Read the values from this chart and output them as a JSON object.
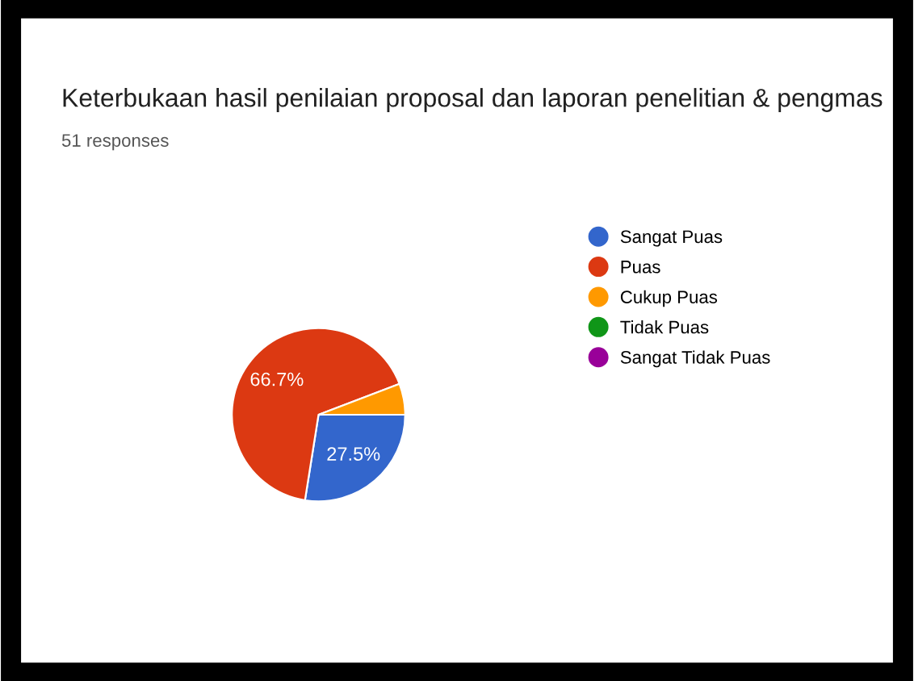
{
  "chart_data": {
    "type": "pie",
    "title": "Keterbukaan hasil penilaian proposal dan laporan penelitian & pengmas",
    "subtitle": "51 responses",
    "categories": [
      "Sangat Puas",
      "Puas",
      "Cukup Puas",
      "Tidak Puas",
      "Sangat Tidak Puas"
    ],
    "values": [
      27.5,
      66.7,
      5.8,
      0,
      0
    ],
    "colors": [
      "#3366cc",
      "#dc3912",
      "#ff9900",
      "#109618",
      "#990099"
    ],
    "value_labels": [
      "27.5%",
      "66.7%",
      null,
      null,
      null
    ],
    "legend": "right"
  }
}
